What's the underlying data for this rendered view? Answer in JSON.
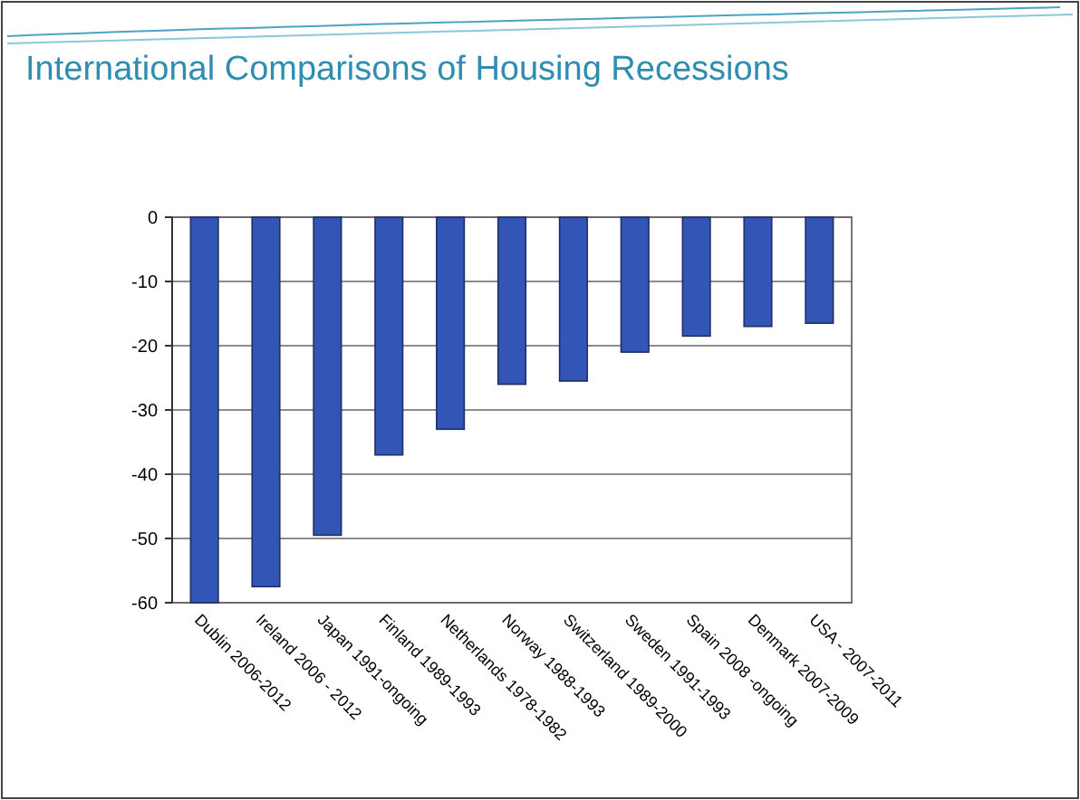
{
  "chart_data": {
    "type": "bar",
    "title": "International Comparisons of Housing Recessions",
    "categories": [
      "Dublin 2006-2012",
      "Ireland 2006 - 2012",
      "Japan 1991-ongoing",
      "Finland 1989-1993",
      "Netherlands 1978-1982",
      "Norway 1988-1993",
      "Switzerland 1989-2000",
      "Sweden 1991-1993",
      "Spain 2008 -ongoing",
      "Denmark 2007-2009",
      "USA - 2007-2011"
    ],
    "values": [
      -60,
      -57.5,
      -49.5,
      -37,
      -33,
      -26,
      -25.5,
      -21,
      -18.5,
      -17,
      -16.5
    ],
    "color": "#3355b5",
    "ylim": [
      -60,
      0
    ],
    "yticks": [
      -60,
      -50,
      -40,
      -30,
      -20,
      -10,
      0
    ],
    "grid": "y"
  }
}
